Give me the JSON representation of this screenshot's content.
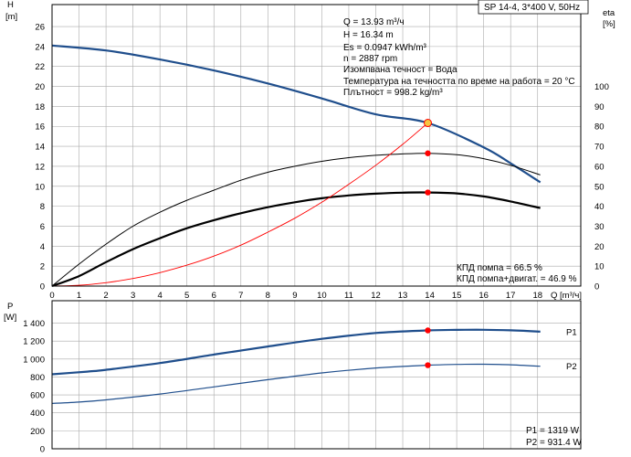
{
  "header": {
    "model": "SP 14-4, 3*400 V, 50Hz"
  },
  "info": [
    "Q = 13.93 m³/ч",
    "H = 16.34 m",
    "Es = 0.0947 kWh/m³",
    "n = 2887 rpm",
    "Изомпвана течност = Вода",
    "Температура на течността по време на работа = 20 °C",
    "Плътност = 998.2 kg/m³"
  ],
  "efficiency_notes": [
    "КПД помпа = 66.5 %",
    "КПД помпа+двигат. = 46.9 %"
  ],
  "power_notes": [
    "P1 = 1319 W",
    "P2 = 931.4 W"
  ],
  "colors": {
    "head": "#1f4e8c",
    "power": "#1f4e8c",
    "eff": "#000000",
    "system": "#ff0000",
    "duty": "#ff0000",
    "duty_head": "#f5c542",
    "grid": "#aaaaaa"
  },
  "chart_data": [
    {
      "type": "line",
      "title": "",
      "xlabel": "Q [m³/ч]",
      "ylabel": "H [m]",
      "y2label": "eta [%]",
      "xlim": [
        0,
        19.6
      ],
      "ylim": [
        0,
        28.2
      ],
      "y2lim": [
        0,
        141
      ],
      "x_ticks": [
        0,
        1,
        2,
        3,
        4,
        5,
        6,
        7,
        8,
        9,
        10,
        11,
        12,
        13,
        14,
        15,
        16,
        17,
        18
      ],
      "x_ticklabels": [
        "0",
        "1",
        "2",
        "3",
        "4",
        "5",
        "6",
        "7",
        "8",
        "9",
        "10",
        "11",
        "12",
        "13",
        "14",
        "15",
        "16",
        "17",
        "18"
      ],
      "y_ticks": [
        0,
        2,
        4,
        6,
        8,
        10,
        12,
        14,
        16,
        18,
        20,
        22,
        24,
        26
      ],
      "y_ticklabels": [
        "0",
        "2",
        "4",
        "6",
        "8",
        "10",
        "12",
        "14",
        "16",
        "18",
        "20",
        "22",
        "24",
        "26"
      ],
      "y2_ticks": [
        0,
        10,
        20,
        30,
        40,
        50,
        60,
        70,
        80,
        90,
        100
      ],
      "y2_ticklabels": [
        "0",
        "10",
        "20",
        "30",
        "40",
        "50",
        "60",
        "70",
        "80",
        "90",
        "100"
      ],
      "series": [
        {
          "axis": "y",
          "role": "head",
          "x": [
            0,
            2,
            4,
            6,
            8,
            10,
            12,
            13.93,
            16,
            17,
            18.1
          ],
          "y": [
            24.1,
            23.6,
            22.7,
            21.6,
            20.3,
            18.8,
            17.2,
            16.34,
            13.9,
            12.3,
            10.4
          ]
        },
        {
          "axis": "y2",
          "role": "eta_pump",
          "x": [
            0,
            1,
            2,
            3,
            4,
            5,
            6,
            7,
            8,
            9,
            10,
            11,
            12,
            13,
            13.93,
            15,
            16,
            17,
            18.1
          ],
          "y": [
            0,
            11,
            21,
            30,
            37,
            43,
            48,
            53,
            57,
            60,
            62.5,
            64.3,
            65.5,
            66.2,
            66.5,
            65.8,
            63.8,
            60.5,
            55.7
          ]
        },
        {
          "axis": "y2",
          "role": "eta_pump_motor",
          "x": [
            0,
            1,
            2,
            3,
            4,
            5,
            6,
            7,
            8,
            9,
            10,
            11,
            12,
            13,
            13.93,
            15,
            16,
            17,
            18.1
          ],
          "y": [
            0,
            5,
            12,
            18.5,
            24,
            29,
            33,
            36.5,
            39.5,
            42,
            44,
            45.4,
            46.3,
            46.8,
            46.9,
            46.4,
            44.9,
            42.4,
            39.1
          ]
        },
        {
          "axis": "y",
          "role": "system",
          "x": [
            0,
            1,
            2,
            3,
            4,
            5,
            6,
            7,
            8,
            9,
            10,
            11,
            12,
            13,
            13.93
          ],
          "y": [
            0,
            0.08,
            0.34,
            0.76,
            1.35,
            2.1,
            3.0,
            4.1,
            5.4,
            6.8,
            8.4,
            10.2,
            12.1,
            14.2,
            16.34
          ]
        }
      ],
      "duty_points": [
        {
          "axis": "y",
          "x": 13.93,
          "y": 16.34
        },
        {
          "axis": "y2",
          "x": 13.93,
          "y": 66.5
        },
        {
          "axis": "y2",
          "x": 13.93,
          "y": 46.9
        }
      ]
    },
    {
      "type": "line",
      "title": "",
      "xlabel": "",
      "ylabel": "P [W]",
      "xlim": [
        0,
        19.6
      ],
      "ylim": [
        0,
        1650
      ],
      "y_ticks": [
        0,
        200,
        400,
        600,
        800,
        1000,
        1200,
        1400
      ],
      "y_ticklabels": [
        "0",
        "200",
        "400",
        "600",
        "800",
        "1 000",
        "1 200",
        "1 400"
      ],
      "series": [
        {
          "name": "P1",
          "x": [
            0,
            1.3,
            2,
            4,
            6,
            8,
            10,
            12,
            13.93,
            15,
            16,
            17,
            18.1
          ],
          "y": [
            830,
            860,
            880,
            955,
            1050,
            1140,
            1225,
            1290,
            1319,
            1325,
            1326,
            1320,
            1305
          ]
        },
        {
          "name": "P2",
          "x": [
            0,
            1,
            2,
            4,
            6,
            8,
            10,
            12,
            13.93,
            15,
            16,
            17,
            18.1
          ],
          "y": [
            505,
            520,
            545,
            610,
            690,
            770,
            845,
            900,
            931.4,
            940,
            942,
            936,
            920
          ]
        }
      ],
      "duty_points": [
        {
          "x": 13.93,
          "y": 1319
        },
        {
          "x": 13.93,
          "y": 931.4
        }
      ]
    }
  ]
}
